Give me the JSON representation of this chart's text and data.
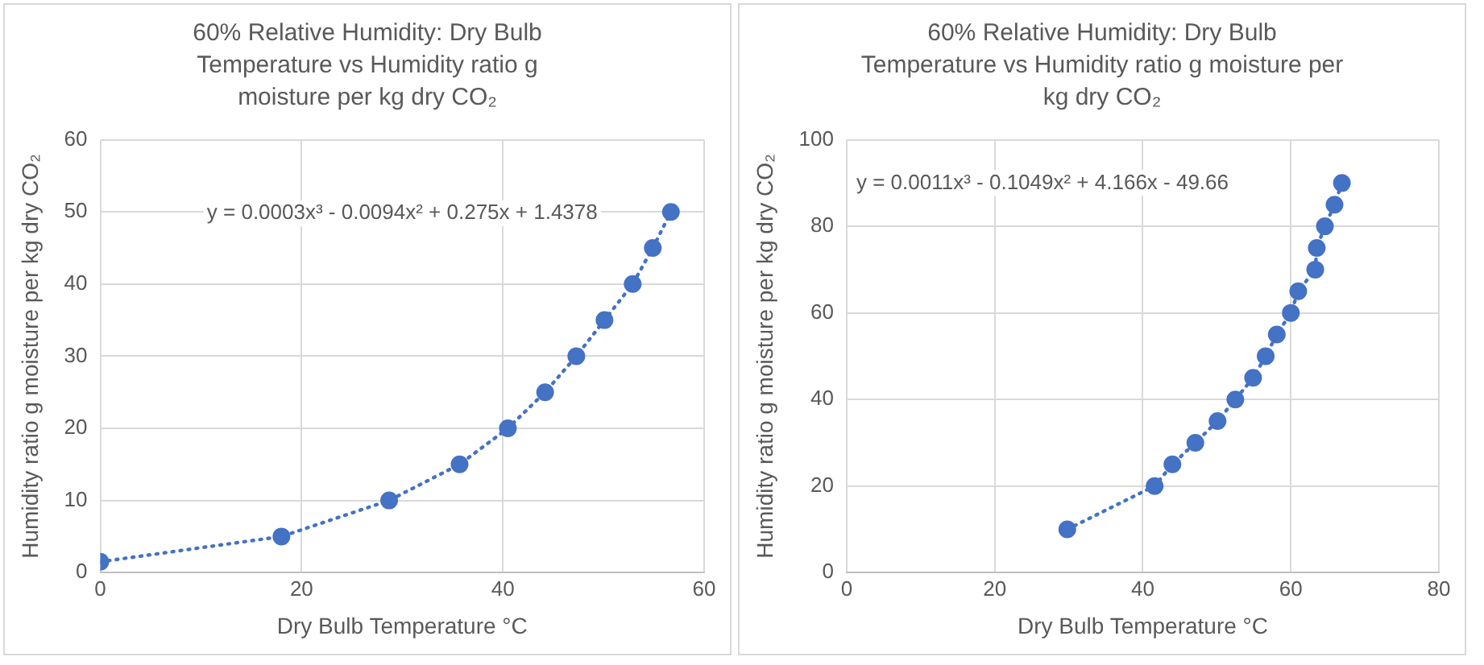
{
  "chart_data": [
    {
      "type": "scatter",
      "title": "60% Relative Humidity: Dry Bulb Temperature vs Humidity ratio g moisture per kg dry CO₂",
      "xlabel": "Dry Bulb Temperature °C",
      "ylabel": "Humidity ratio g moisture per kg dry CO₂",
      "xlim": [
        0,
        60
      ],
      "xticks": [
        0,
        20,
        40,
        60
      ],
      "ylim": [
        0,
        60
      ],
      "yticks": [
        0,
        10,
        20,
        30,
        40,
        50,
        60
      ],
      "grid": true,
      "legend": false,
      "annotations": [
        "y = 0.0003x³ - 0.0094x² + 0.275x + 1.4378"
      ],
      "series": [
        {
          "marker": "circle",
          "color": "#4472c4",
          "x": [
            0,
            18,
            28.7,
            35.7,
            40.5,
            44.2,
            47.3,
            50.1,
            52.9,
            54.9,
            56.7
          ],
          "values": [
            1.5,
            5,
            10,
            15,
            20,
            25,
            30,
            35,
            40,
            45,
            50
          ]
        },
        {
          "type": "line",
          "marker": "none",
          "color": "#4472c4",
          "line_style": "dotted",
          "x": [
            0,
            18,
            28.7,
            35.7,
            40.5,
            44.2,
            47.3,
            50.1,
            52.9,
            54.9,
            56.7
          ],
          "values": [
            1.5,
            5,
            10,
            15,
            20,
            25,
            30,
            35,
            40,
            45,
            50
          ]
        }
      ]
    },
    {
      "type": "scatter",
      "title": "60% Relative Humidity: Dry Bulb Temperature vs Humidity ratio g moisture per kg dry CO₂",
      "xlabel": "Dry Bulb Temperature °C",
      "ylabel": "Humidity ratio g moisture per kg dry CO₂",
      "xlim": [
        0,
        80
      ],
      "xticks": [
        0,
        20,
        40,
        60,
        80
      ],
      "ylim": [
        0,
        100
      ],
      "yticks": [
        0,
        20,
        40,
        60,
        80,
        100
      ],
      "grid": true,
      "legend": false,
      "annotations": [
        "y = 0.0011x³ - 0.1049x² + 4.166x - 49.66"
      ],
      "series": [
        {
          "marker": "circle",
          "color": "#4472c4",
          "x": [
            29.8,
            41.6,
            44,
            47.1,
            50.1,
            52.5,
            54.9,
            56.6,
            58.1,
            60,
            61,
            63.3,
            63.5,
            64.6,
            65.9,
            66.9
          ],
          "values": [
            10,
            20,
            25,
            30,
            35,
            40,
            45,
            50,
            55,
            60,
            65,
            70,
            75,
            80,
            85,
            90
          ]
        },
        {
          "type": "line",
          "marker": "none",
          "color": "#4472c4",
          "line_style": "dotted",
          "x": [
            29.8,
            41.6,
            44,
            47.1,
            50.1,
            52.5,
            54.9,
            56.6,
            58.1,
            60,
            61,
            63.3,
            63.5,
            64.6,
            65.9,
            66.9
          ],
          "values": [
            10,
            20,
            25,
            30,
            35,
            40,
            45,
            50,
            55,
            60,
            65,
            70,
            75,
            80,
            85,
            90
          ]
        }
      ]
    }
  ]
}
